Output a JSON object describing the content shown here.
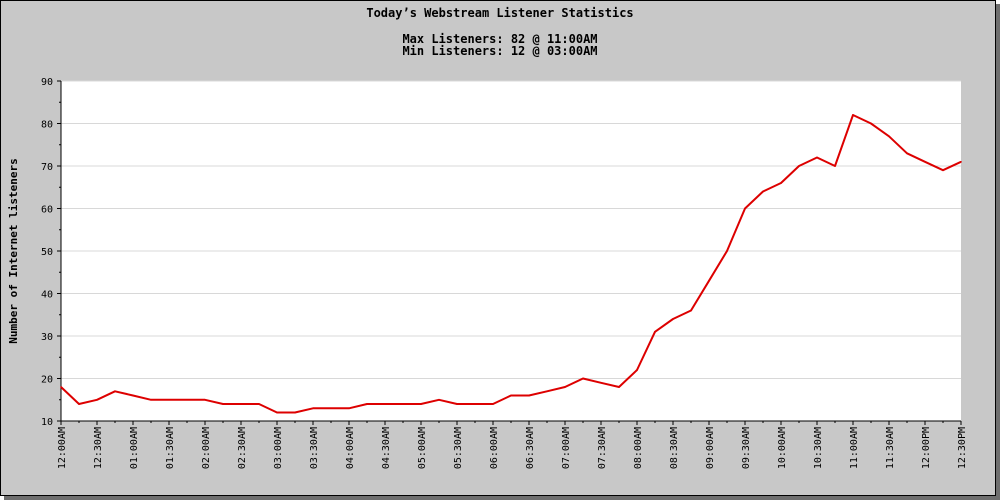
{
  "chart_data": {
    "type": "line",
    "title": "Today’s Webstream Listener Statistics",
    "subtitle_lines": [
      "Max Listeners: 82 @ 11:00AM",
      "Min Listeners: 12 @ 03:00AM"
    ],
    "xlabel": "",
    "ylabel": "Number of Internet listeners",
    "ylim": [
      10,
      90
    ],
    "yticks": [
      10,
      20,
      30,
      40,
      50,
      60,
      70,
      80,
      90
    ],
    "xtick_labels": [
      "12:00AM",
      "12:30AM",
      "01:00AM",
      "01:30AM",
      "02:00AM",
      "02:30AM",
      "03:00AM",
      "03:30AM",
      "04:00AM",
      "04:30AM",
      "05:00AM",
      "05:30AM",
      "06:00AM",
      "06:30AM",
      "07:00AM",
      "07:30AM",
      "08:00AM",
      "08:30AM",
      "09:00AM",
      "09:30AM",
      "10:00AM",
      "10:30AM",
      "11:00AM",
      "11:30AM",
      "12:00PM",
      "12:30PM"
    ],
    "x_interval_minutes": 15,
    "grid": true,
    "series": [
      {
        "color": "#dd0000",
        "values": [
          18,
          14,
          15,
          17,
          16,
          15,
          15,
          15,
          15,
          14,
          14,
          14,
          12,
          12,
          13,
          13,
          13,
          14,
          14,
          14,
          14,
          15,
          14,
          14,
          14,
          16,
          16,
          17,
          18,
          20,
          19,
          18,
          22,
          31,
          34,
          36,
          43,
          50,
          60,
          64,
          66,
          70,
          72,
          70,
          82,
          80,
          77,
          73,
          71,
          69,
          71
        ]
      }
    ]
  }
}
